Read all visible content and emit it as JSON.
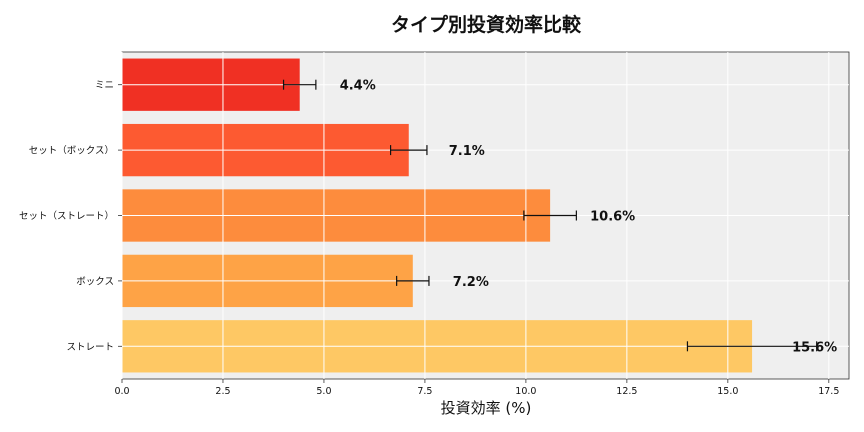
{
  "chart_data": {
    "type": "bar",
    "orientation": "horizontal",
    "title": "タイプ別投資効率比較",
    "xlabel": "投資効率 (%)",
    "ylabel": "",
    "xlim": [
      0,
      18
    ],
    "xticks": [
      "0.0",
      "2.5",
      "5.0",
      "7.5",
      "10.0",
      "12.5",
      "15.0",
      "17.5"
    ],
    "xtick_values": [
      0,
      2.5,
      5,
      7.5,
      10,
      12.5,
      15,
      17.5
    ],
    "grid": true,
    "categories": [
      "ミニ",
      "セット（ボックス）",
      "セット（ストレート）",
      "ボックス",
      "ストレート"
    ],
    "values": [
      4.4,
      7.1,
      10.6,
      7.2,
      15.6
    ],
    "errors": [
      0.4,
      0.45,
      0.65,
      0.4,
      1.6
    ],
    "data_labels": [
      "4.4%",
      "7.1%",
      "10.6%",
      "7.2%",
      "15.6%"
    ],
    "colors": [
      "#f03023",
      "#fd5a31",
      "#fd8c3d",
      "#fea346",
      "#fec864"
    ],
    "background": "#efefef"
  }
}
